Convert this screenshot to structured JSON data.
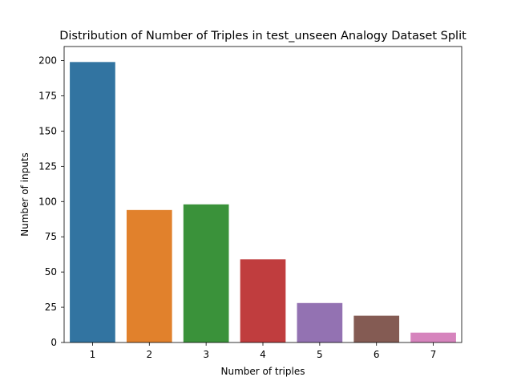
{
  "chart_data": {
    "type": "bar",
    "title": "Distribution of Number of Triples in test_unseen Analogy Dataset Split",
    "xlabel": "Number of triples",
    "ylabel": "Number of inputs",
    "categories": [
      "1",
      "2",
      "3",
      "4",
      "5",
      "6",
      "7"
    ],
    "values": [
      199,
      94,
      98,
      59,
      28,
      19,
      7
    ],
    "colors": [
      "#3274a1",
      "#e1812c",
      "#3a923a",
      "#c03d3e",
      "#9372b2",
      "#845b53",
      "#d684bd"
    ],
    "ylim": [
      0,
      210
    ],
    "yticks": [
      0,
      25,
      50,
      75,
      100,
      125,
      150,
      175,
      200
    ],
    "grid": false,
    "legend": "none"
  }
}
